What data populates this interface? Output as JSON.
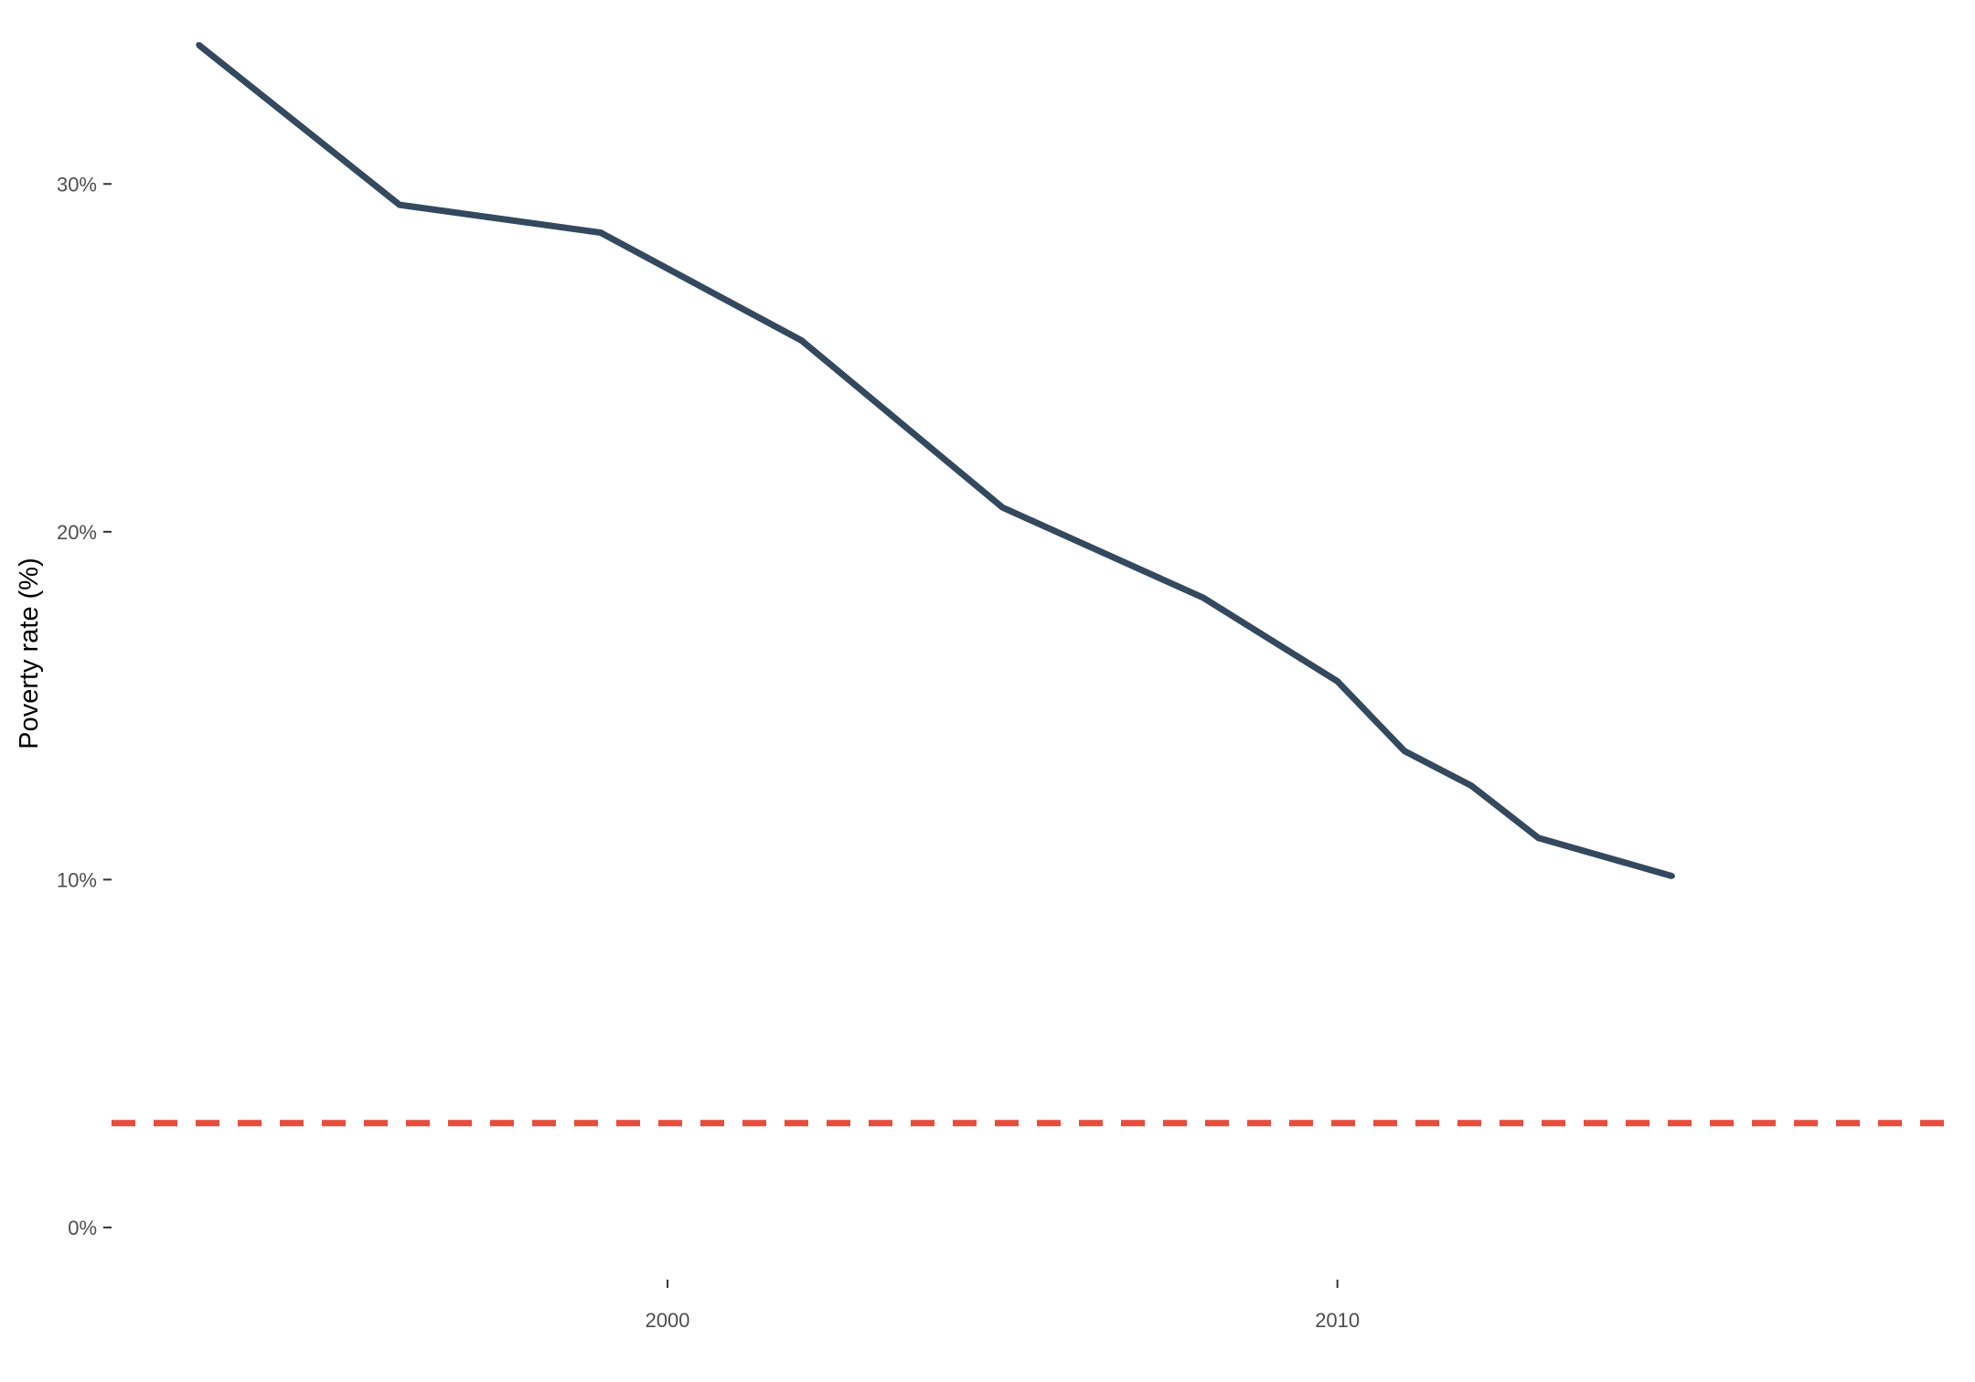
{
  "chart_data": {
    "type": "line",
    "title": "",
    "xlabel": "",
    "ylabel": "Poverty rate (%)",
    "xlim": [
      1991.7,
      2019.3
    ],
    "ylim": [
      -0.015,
      0.345
    ],
    "x_ticks": [
      {
        "value": 2000,
        "label": "2000"
      },
      {
        "value": 2010,
        "label": "2010"
      }
    ],
    "y_ticks": [
      {
        "value": 0.0,
        "label": "0%"
      },
      {
        "value": 0.1,
        "label": "10%"
      },
      {
        "value": 0.2,
        "label": "20%"
      },
      {
        "value": 0.3,
        "label": "30%"
      }
    ],
    "grid": false,
    "series": [
      {
        "color": "#34495e",
        "x": [
          1993,
          1996,
          1999,
          2002,
          2005,
          2008,
          2010,
          2011,
          2012,
          2013,
          2015
        ],
        "y": [
          0.34,
          0.294,
          0.286,
          0.255,
          0.207,
          0.181,
          0.157,
          0.137,
          0.127,
          0.112,
          0.101
        ]
      }
    ],
    "reference_line": {
      "y": 0.03,
      "color": "#e74c3c",
      "style": "dashed"
    }
  }
}
